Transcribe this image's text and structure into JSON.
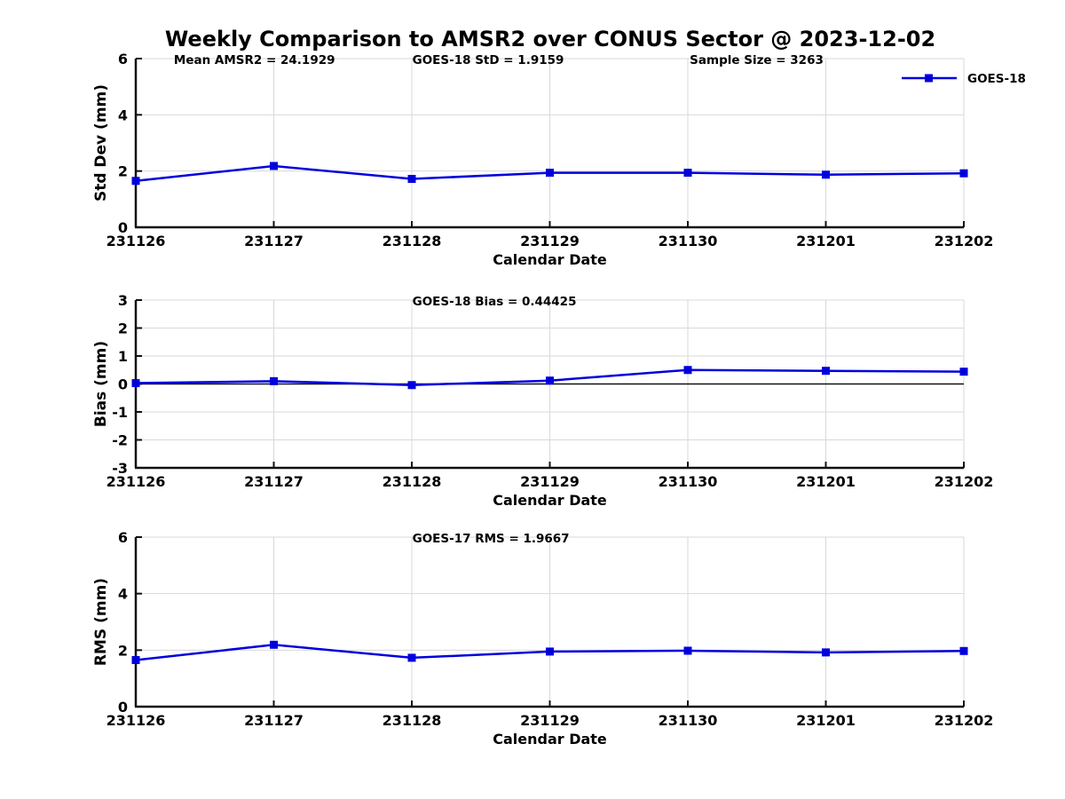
{
  "title": "Weekly Comparison to AMSR2 over CONUS Sector @ 2023-12-02",
  "colors": {
    "line": "#0000dd",
    "grid": "#d9d9d9",
    "axis": "#111111",
    "text": "#000000"
  },
  "legend": {
    "label": "GOES-18"
  },
  "chart_data": [
    {
      "type": "line",
      "name": "std-dev-panel",
      "categories": [
        "231126",
        "231127",
        "231128",
        "231129",
        "231130",
        "231201",
        "231202"
      ],
      "series": [
        {
          "name": "GOES-18",
          "values": [
            1.65,
            2.18,
            1.72,
            1.94,
            1.94,
            1.87,
            1.92
          ]
        }
      ],
      "annotations": [
        "Mean AMSR2 = 24.1929",
        "GOES-18 StD = 1.9159",
        "Sample Size = 3263"
      ],
      "xlabel": "Calendar Date",
      "ylabel": "Std Dev (mm)",
      "ylim": [
        0,
        6
      ],
      "yticks": [
        0,
        2,
        4,
        6
      ],
      "grid": true,
      "zero_line": false,
      "legend_position": "top-right"
    },
    {
      "type": "line",
      "name": "bias-panel",
      "categories": [
        "231126",
        "231127",
        "231128",
        "231129",
        "231130",
        "231201",
        "231202"
      ],
      "series": [
        {
          "name": "GOES-18",
          "values": [
            0.03,
            0.1,
            -0.04,
            0.12,
            0.5,
            0.47,
            0.44
          ]
        }
      ],
      "annotations": [
        "GOES-18 Bias  = 0.44425"
      ],
      "xlabel": "Calendar Date",
      "ylabel": "Bias (mm)",
      "ylim": [
        -3,
        3
      ],
      "yticks": [
        3,
        2,
        1,
        0,
        -1,
        -2,
        -3
      ],
      "grid": true,
      "zero_line": true,
      "legend_position": "none"
    },
    {
      "type": "line",
      "name": "rms-panel",
      "categories": [
        "231126",
        "231127",
        "231128",
        "231129",
        "231130",
        "231201",
        "231202"
      ],
      "series": [
        {
          "name": "GOES-18",
          "values": [
            1.65,
            2.19,
            1.73,
            1.95,
            1.98,
            1.92,
            1.97
          ]
        }
      ],
      "annotations": [
        "GOES-17 RMS = 1.9667"
      ],
      "xlabel": "Calendar Date",
      "ylabel": "RMS (mm)",
      "ylim": [
        0,
        6
      ],
      "yticks": [
        0,
        2,
        4,
        6
      ],
      "grid": true,
      "zero_line": false,
      "legend_position": "none"
    }
  ]
}
